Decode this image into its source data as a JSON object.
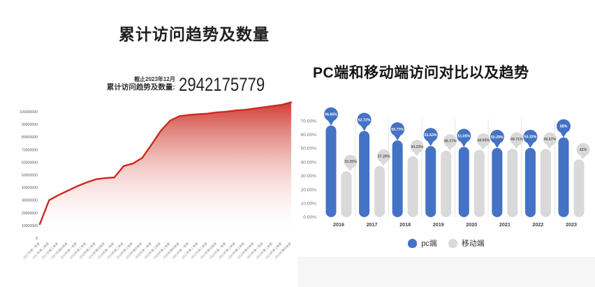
{
  "left_panel": {
    "title": "累计访问趋势及数量",
    "stat": {
      "as_of": "截止2023年12月",
      "label": "累计访问趋势及数量:",
      "value": "2942175779"
    }
  },
  "right_panel": {
    "title": "PC端和移动端访问对比以及趋势"
  },
  "colors": {
    "accent_red": "#cc2a20",
    "accent_blue": "#4472c4",
    "bar_gray": "#d9d9d9",
    "bubble_gray_text": "#595959",
    "axis_text": "#737373",
    "separator": "#e5e5e5"
  },
  "chart_data": [
    {
      "type": "area",
      "title": "累计访问趋势及数量",
      "x": [
        "2017年第一季度",
        "2017年第二季度",
        "2017年第三季度",
        "2017年第四季度",
        "2018年第一季度",
        "2018年第二季度",
        "2018年第三季度",
        "2018年第四季度",
        "2019年第一季度",
        "2019年第二季度",
        "2019年第三季度",
        "2019年第四季度",
        "2020年第一季度",
        "2020年第二季度",
        "2020年第三季度",
        "2020年第四季度",
        "2021年第一季度",
        "2021年第二季度",
        "2021年第三季度",
        "2021年第四季度",
        "2022年第一季度",
        "2022年第二季度",
        "2022年第三季度",
        "2022年第四季度",
        "2023年第一季度",
        "2023年第二季度",
        "2023年第三季度",
        "2023年第四季度"
      ],
      "values": [
        11000000,
        30000000,
        34000000,
        37500000,
        41000000,
        44000000,
        46500000,
        47500000,
        48000000,
        57000000,
        59000000,
        63500000,
        74000000,
        85000000,
        93000000,
        96500000,
        97500000,
        98000000,
        98500000,
        99500000,
        100000000,
        101000000,
        101500000,
        102500000,
        103500000,
        104500000,
        105500000,
        107500000
      ],
      "y_ticks": [
        "100000000",
        "90000000",
        "80000000",
        "70000000",
        "60000000",
        "50000000",
        "40000000",
        "30000000",
        "20000000",
        "10000000",
        "0"
      ],
      "ylim": [
        0,
        110000000
      ],
      "line_color": "#cc2a20",
      "grid": false
    },
    {
      "type": "bar",
      "title": "PC端和移动端访问对比以及趋势",
      "categories": [
        "2016",
        "2017",
        "2018",
        "2019",
        "2020",
        "2021",
        "2022",
        "2023"
      ],
      "series": [
        {
          "name": "pc端",
          "color": "#4472c4",
          "values": [
            66.65,
            62.72,
            55.77,
            51.63,
            51.05,
            50.29,
            50.33,
            58
          ],
          "labels": [
            "66.65%",
            "62.72%",
            "55.77%",
            "51.63%",
            "51.05%",
            "50.29%",
            "50.33%",
            "58%"
          ]
        },
        {
          "name": "移动端",
          "color": "#d9d9d9",
          "values": [
            33.35,
            37.28,
            44.23,
            48.37,
            48.95,
            49.71,
            49.67,
            42
          ],
          "labels": [
            "33.35%",
            "37.28%",
            "44.23%",
            "48.37%",
            "48.95%",
            "49.71%",
            "49.67%",
            "42%"
          ]
        }
      ],
      "y_ticks": [
        "70.00%",
        "60.00%",
        "50.00%",
        "40.00%",
        "30.00%",
        "20.00%",
        "10.00%",
        "0.00%"
      ],
      "ylim": [
        0,
        70
      ],
      "legend": [
        "pc端",
        "移动端"
      ],
      "legend_position": "bottom",
      "grid": false
    }
  ]
}
